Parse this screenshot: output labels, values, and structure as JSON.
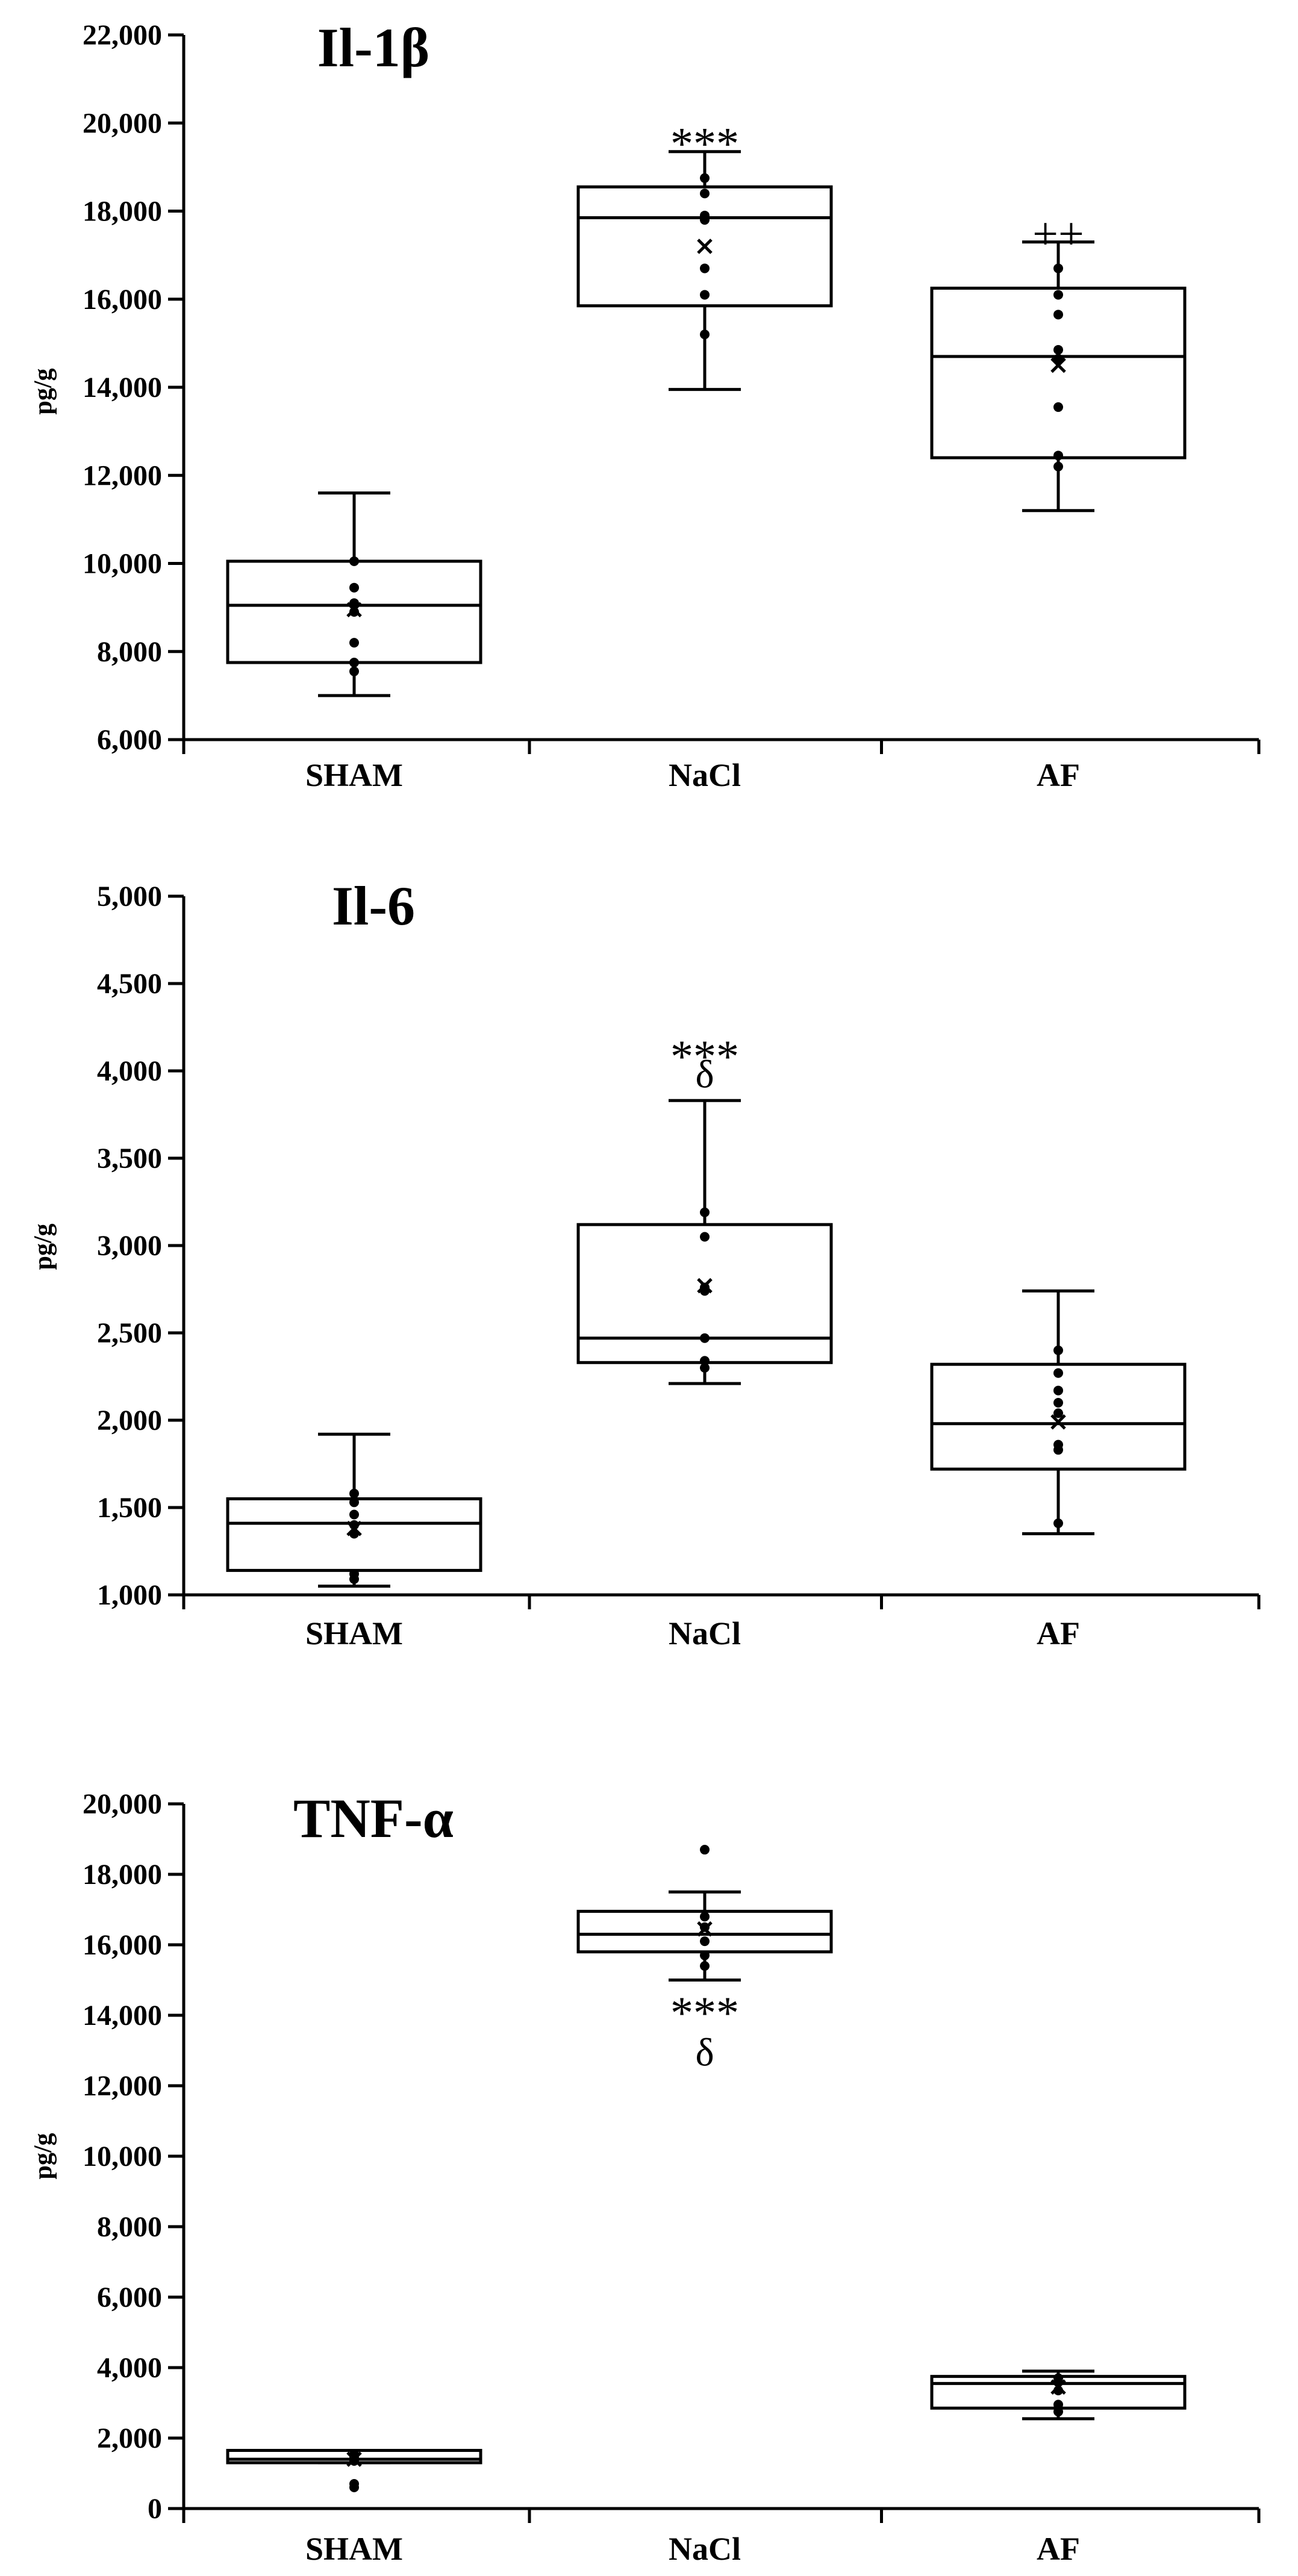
{
  "chart_data": [
    {
      "type": "box",
      "title": "Il-1β",
      "ylabel": "pg/g",
      "ylim": [
        6000,
        22000
      ],
      "yticks": [
        6000,
        8000,
        10000,
        12000,
        14000,
        16000,
        18000,
        20000,
        22000
      ],
      "ytick_labels": [
        "6,000",
        "8,000",
        "10,000",
        "12,000",
        "14,000",
        "16,000",
        "18,000",
        "20,000",
        "22,000"
      ],
      "categories": [
        "SHAM",
        "NaCl",
        "AF"
      ],
      "groups": [
        {
          "name": "SHAM",
          "min": 7000,
          "q1": 7750,
          "median": 9050,
          "q3": 10050,
          "max": 11600,
          "mean": 8950,
          "points": [
            7550,
            7750,
            8200,
            8900,
            9100,
            9450,
            10050
          ],
          "annotation": []
        },
        {
          "name": "NaCl",
          "min": 13950,
          "q1": 15850,
          "median": 17850,
          "q3": 18550,
          "max": 19350,
          "mean": 17200,
          "points": [
            15200,
            16100,
            16700,
            17800,
            17900,
            18400,
            18750
          ],
          "annotation": [
            "***"
          ]
        },
        {
          "name": "AF",
          "min": 11200,
          "q1": 12400,
          "median": 14700,
          "q3": 16250,
          "max": 17300,
          "mean": 14500,
          "points": [
            12200,
            12450,
            13550,
            14650,
            14850,
            15650,
            16100,
            16700
          ],
          "annotation": [
            "++"
          ]
        }
      ]
    },
    {
      "type": "box",
      "title": "Il-6",
      "ylabel": "pg/g",
      "ylim": [
        1000,
        5000
      ],
      "yticks": [
        1000,
        1500,
        2000,
        2500,
        3000,
        3500,
        4000,
        4500,
        5000
      ],
      "ytick_labels": [
        "1,000",
        "1,500",
        "2,000",
        "2,500",
        "3,000",
        "3,500",
        "4,000",
        "4,500",
        "5,000"
      ],
      "categories": [
        "SHAM",
        "NaCl",
        "AF"
      ],
      "groups": [
        {
          "name": "SHAM",
          "min": 1050,
          "q1": 1140,
          "median": 1410,
          "q3": 1550,
          "max": 1920,
          "mean": 1380,
          "points": [
            1090,
            1120,
            1350,
            1400,
            1460,
            1530,
            1580
          ],
          "annotation": []
        },
        {
          "name": "NaCl",
          "min": 2210,
          "q1": 2330,
          "median": 2470,
          "q3": 3120,
          "max": 3830,
          "mean": 2770,
          "points": [
            2300,
            2340,
            2470,
            2740,
            2760,
            3050,
            3190
          ],
          "annotation": [
            "***",
            "δ"
          ]
        },
        {
          "name": "AF",
          "min": 1350,
          "q1": 1720,
          "median": 1980,
          "q3": 2320,
          "max": 2740,
          "mean": 1990,
          "points": [
            1410,
            1830,
            1860,
            2040,
            2100,
            2170,
            2270,
            2400
          ],
          "annotation": []
        }
      ]
    },
    {
      "type": "box",
      "title": "TNF-α",
      "ylabel": "pg/g",
      "ylim": [
        0,
        20000
      ],
      "yticks": [
        0,
        2000,
        4000,
        6000,
        8000,
        10000,
        12000,
        14000,
        16000,
        18000,
        20000
      ],
      "ytick_labels": [
        "0",
        "2,000",
        "4,000",
        "6,000",
        "8,000",
        "10,000",
        "12,000",
        "14,000",
        "16,000",
        "18,000",
        "20,000"
      ],
      "categories": [
        "SHAM",
        "NaCl",
        "AF"
      ],
      "groups": [
        {
          "name": "SHAM",
          "min": 1300,
          "q1": 1300,
          "median": 1400,
          "q3": 1650,
          "max": 1650,
          "mean": 1400,
          "points": [
            600,
            700,
            1350,
            1450,
            1550
          ],
          "annotation": []
        },
        {
          "name": "NaCl",
          "min": 15000,
          "q1": 15800,
          "median": 16300,
          "q3": 16950,
          "max": 17500,
          "mean": 16450,
          "points": [
            15400,
            15700,
            16100,
            16500,
            16800,
            18700
          ],
          "annotation": [
            "***",
            "δ"
          ]
        },
        {
          "name": "AF",
          "min": 2550,
          "q1": 2850,
          "median": 3550,
          "q3": 3750,
          "max": 3900,
          "mean": 3450,
          "points": [
            2750,
            2950,
            3350,
            3600,
            3700
          ],
          "annotation": []
        }
      ]
    }
  ]
}
